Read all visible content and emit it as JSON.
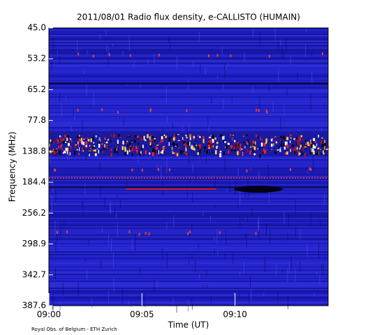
{
  "chart_data": {
    "type": "spectrogram",
    "title": "2011/08/01  Radio flux density, e-CALLISTO (HUMAIN)",
    "x_label": "Time (UT)",
    "y_label": "Frequency (MHz)",
    "footer": "Royal Obs. of Belgium - ETH Zurich",
    "xlim": [
      "09:00",
      "09:15"
    ],
    "xticks": [
      "09:00",
      "09:05",
      "09:10"
    ],
    "yticks": [
      {
        "value": 45,
        "label": "45.0"
      },
      53.2,
      65.2,
      77.8,
      138.8,
      184.4,
      256.2,
      298.9,
      342.7,
      387.6
    ],
    "color": "#2222c8"
  }
}
